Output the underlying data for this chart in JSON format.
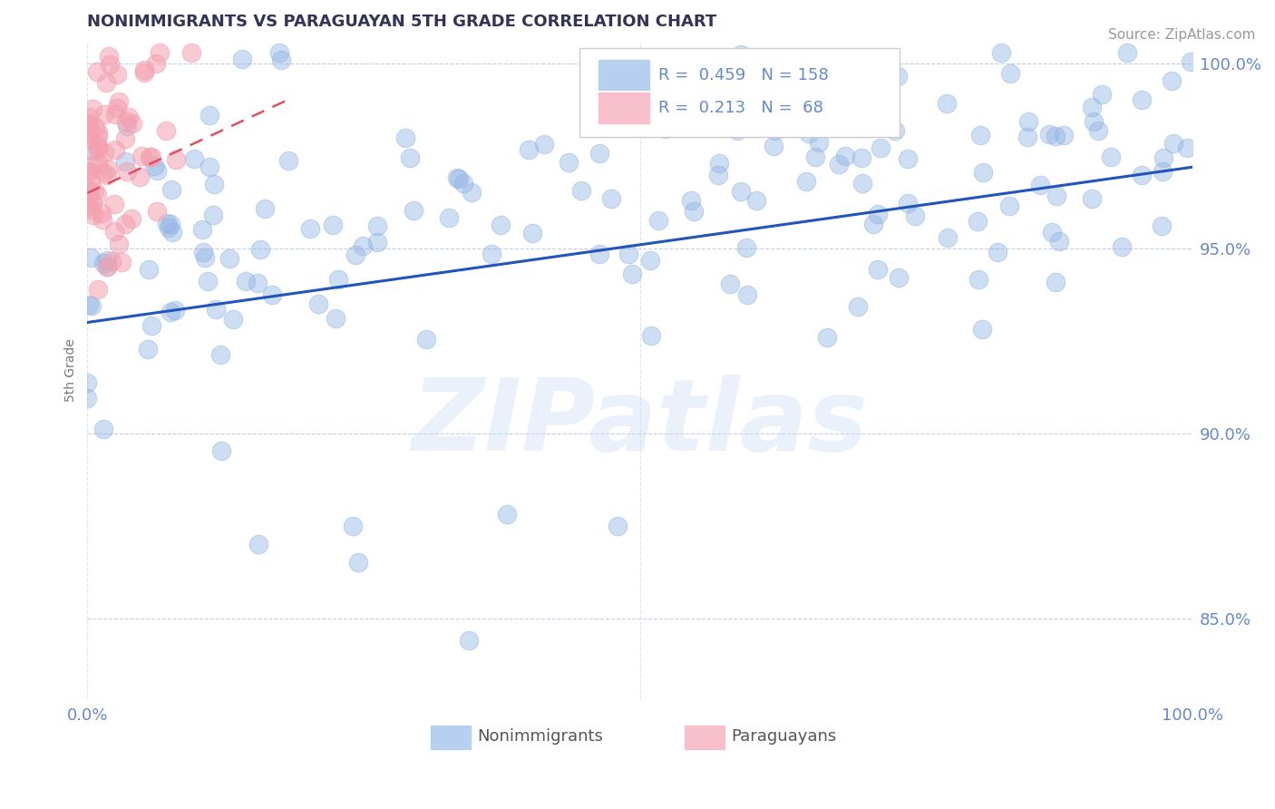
{
  "title": "NONIMMIGRANTS VS PARAGUAYAN 5TH GRADE CORRELATION CHART",
  "source": "Source: ZipAtlas.com",
  "ylabel": "5th Grade",
  "xlim": [
    0,
    1
  ],
  "ylim": [
    0.828,
    1.006
  ],
  "yticks": [
    0.85,
    0.9,
    0.95,
    1.0
  ],
  "ytick_labels": [
    "85.0%",
    "90.0%",
    "95.0%",
    "100.0%"
  ],
  "xticks": [
    0.0,
    1.0
  ],
  "xtick_labels": [
    "0.0%",
    "100.0%"
  ],
  "blue_R": 0.459,
  "blue_N": 158,
  "pink_R": 0.213,
  "pink_N": 68,
  "blue_color": "#92b4e3",
  "pink_color": "#f4a0b0",
  "blue_line_color": "#2255bb",
  "pink_line_color": "#e05060",
  "title_color": "#333355",
  "axis_color": "#6688cc",
  "background_color": "#ffffff",
  "watermark": "ZIPatlas",
  "grid_color": "#aabbdd",
  "blue_line_x0": 0.0,
  "blue_line_y0": 0.93,
  "blue_line_x1": 1.0,
  "blue_line_y1": 0.972,
  "pink_line_x0": 0.0,
  "pink_line_y0": 0.965,
  "pink_line_x1": 0.18,
  "pink_line_y1": 0.99
}
